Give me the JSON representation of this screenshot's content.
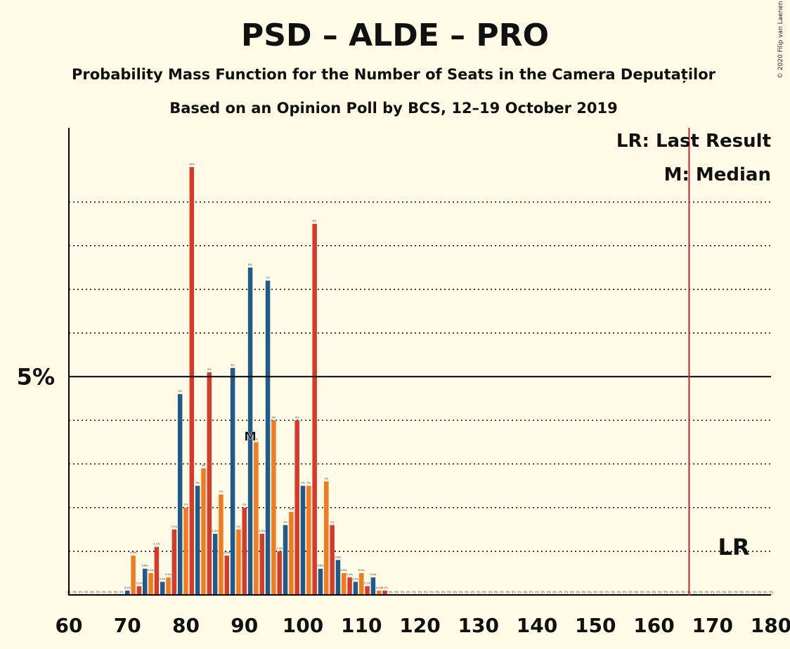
{
  "chart_data": {
    "type": "bar",
    "title": "PSD – ALDE – PRO",
    "subtitle": "Probability Mass Function for the Number of Seats in the Camera Deputaților",
    "subtitle2": "Based on an Opinion Poll by BCS, 12–19 October 2019",
    "copyright": "© 2020 Filip van Laenen",
    "legend": {
      "lr": "LR: Last Result",
      "m": "M: Median",
      "placement": "top-right"
    },
    "y_label_5": "5%",
    "lr_label": "LR",
    "median_marker": "M",
    "median": 91,
    "last_result": 166,
    "xlim": [
      60,
      180
    ],
    "ylim": [
      0,
      10.7
    ],
    "x_ticks": [
      60,
      70,
      80,
      90,
      100,
      110,
      120,
      130,
      140,
      150,
      160,
      170,
      180
    ],
    "x_tick_labels": [
      "60",
      "70",
      "80",
      "90",
      "100",
      "110",
      "120",
      "130",
      "140",
      "150",
      "160",
      "170",
      "180"
    ],
    "colors": {
      "blue": "#1f5a8a",
      "orange": "#f07c1f",
      "red": "#d63a2a",
      "lr_line": "#cc1f2f",
      "background": "#fffbe6"
    },
    "x": [
      60,
      61,
      62,
      63,
      64,
      65,
      66,
      67,
      68,
      69,
      70,
      71,
      72,
      73,
      74,
      75,
      76,
      77,
      78,
      79,
      80,
      81,
      82,
      83,
      84,
      85,
      86,
      87,
      88,
      89,
      90,
      91,
      92,
      93,
      94,
      95,
      96,
      97,
      98,
      99,
      100,
      101,
      102,
      103,
      104,
      105,
      106,
      107,
      108,
      109,
      110,
      111,
      112,
      113,
      114,
      115,
      116,
      117,
      118,
      119,
      120,
      121,
      122,
      123,
      124,
      125,
      126,
      127,
      128,
      129,
      130,
      131,
      132,
      133,
      134,
      135,
      136,
      137,
      138,
      139,
      140,
      141,
      142,
      143,
      144,
      145,
      146,
      147,
      148,
      149,
      150,
      151,
      152,
      153,
      154,
      155,
      156,
      157,
      158,
      159,
      160,
      161,
      162,
      163,
      164,
      165,
      166,
      167,
      168,
      169,
      170,
      171,
      172,
      173,
      174,
      175,
      176,
      177,
      178,
      179,
      180
    ],
    "values": [
      0,
      0,
      0,
      0,
      0,
      0,
      0,
      0,
      0,
      0,
      0.1,
      0.9,
      0.2,
      0.6,
      0.5,
      1.1,
      0.3,
      0.4,
      1.5,
      4.6,
      2.0,
      9.8,
      2.5,
      2.9,
      5.1,
      1.4,
      2.3,
      0.9,
      5.2,
      1.5,
      2.0,
      7.5,
      3.5,
      1.4,
      7.2,
      4.0,
      1.0,
      1.6,
      1.9,
      4.0,
      2.5,
      2.5,
      8.5,
      0.6,
      2.6,
      1.6,
      0.8,
      0.5,
      0.4,
      0.3,
      0.5,
      0.2,
      0.4,
      0.1,
      0.1,
      0,
      0,
      0,
      0,
      0,
      0,
      0,
      0,
      0,
      0,
      0,
      0,
      0,
      0,
      0,
      0,
      0,
      0,
      0,
      0,
      0,
      0,
      0,
      0,
      0,
      0,
      0,
      0,
      0,
      0,
      0,
      0,
      0,
      0,
      0,
      0,
      0,
      0,
      0,
      0,
      0,
      0,
      0,
      0,
      0,
      0,
      0,
      0,
      0,
      0,
      0,
      0,
      0,
      0,
      0,
      0,
      0,
      0,
      0,
      0,
      0,
      0,
      0,
      0,
      0,
      0
    ],
    "bar_labels": [
      "0%",
      "0%",
      "0%",
      "0%",
      "0%",
      "0%",
      "0%",
      "0%",
      "0%",
      "0%",
      "0.1%",
      "0.9%",
      "0.2%",
      "0.6%",
      "0.5%",
      "1.1%",
      "0.3%",
      "0.4%",
      "1.5%",
      "5%",
      "2%",
      "10%",
      "3%",
      "3%",
      "5%",
      "1.4%",
      "2%",
      "0.9%",
      "5%",
      "2%",
      "2%",
      "8%",
      "4%",
      "1.4%",
      "7%",
      "4%",
      "1.0%",
      "2%",
      "2%",
      "4%",
      "2%",
      "2%",
      "8%",
      "0.6%",
      "3%",
      "2%",
      "0.8%",
      "0.5%",
      "0.4%",
      "0.3%",
      "0.5%",
      "0.2%",
      "0.4%",
      "0.1%",
      "0.1%",
      "0%",
      "0%",
      "0%",
      "0%",
      "0%",
      "0%",
      "0%",
      "0%",
      "0%",
      "0%",
      "0%",
      "0%",
      "0%",
      "0%",
      "0%",
      "0%",
      "0%",
      "0%",
      "0%",
      "0%",
      "0%",
      "0%",
      "0%",
      "0%",
      "0%",
      "0%",
      "0%",
      "0%",
      "0%",
      "0%",
      "0%",
      "0%",
      "0%",
      "0%",
      "0%",
      "0%",
      "0%",
      "0%",
      "0%",
      "0%",
      "0%",
      "0%",
      "0%",
      "0%",
      "0%",
      "0%",
      "0%",
      "0%",
      "0%",
      "0%",
      "0%",
      "0%",
      "0%",
      "0%",
      "0%",
      "0%",
      "0%",
      "0%",
      "0%",
      "0%",
      "0%",
      "0%",
      "0%",
      "0%",
      "0%",
      "0%"
    ],
    "series_colors": [
      "red",
      "blue",
      "orange"
    ]
  }
}
